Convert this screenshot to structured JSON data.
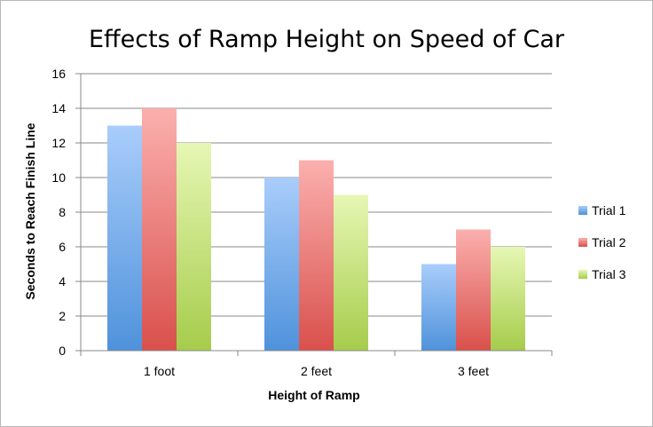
{
  "chart_data": {
    "type": "bar",
    "title": "Effects of Ramp Height on Speed of Car",
    "xlabel": "Height of Ramp",
    "ylabel": "Seconds to Reach Finish Line",
    "categories": [
      "1 foot",
      "2 feet",
      "3 feet"
    ],
    "series": [
      {
        "name": "Trial 1",
        "values": [
          13,
          10,
          5
        ],
        "color_top": "#a9cdfb",
        "color_bottom": "#4f92db"
      },
      {
        "name": "Trial 2",
        "values": [
          14,
          11,
          7
        ],
        "color_top": "#fbb0ae",
        "color_bottom": "#d9504c"
      },
      {
        "name": "Trial 3",
        "values": [
          12,
          9,
          6
        ],
        "color_top": "#e6f7b4",
        "color_bottom": "#a6cc4b"
      }
    ],
    "ylim": [
      0,
      16
    ],
    "yticks": [
      0,
      2,
      4,
      6,
      8,
      10,
      12,
      14,
      16
    ],
    "grid": true,
    "legend_position": "right"
  }
}
